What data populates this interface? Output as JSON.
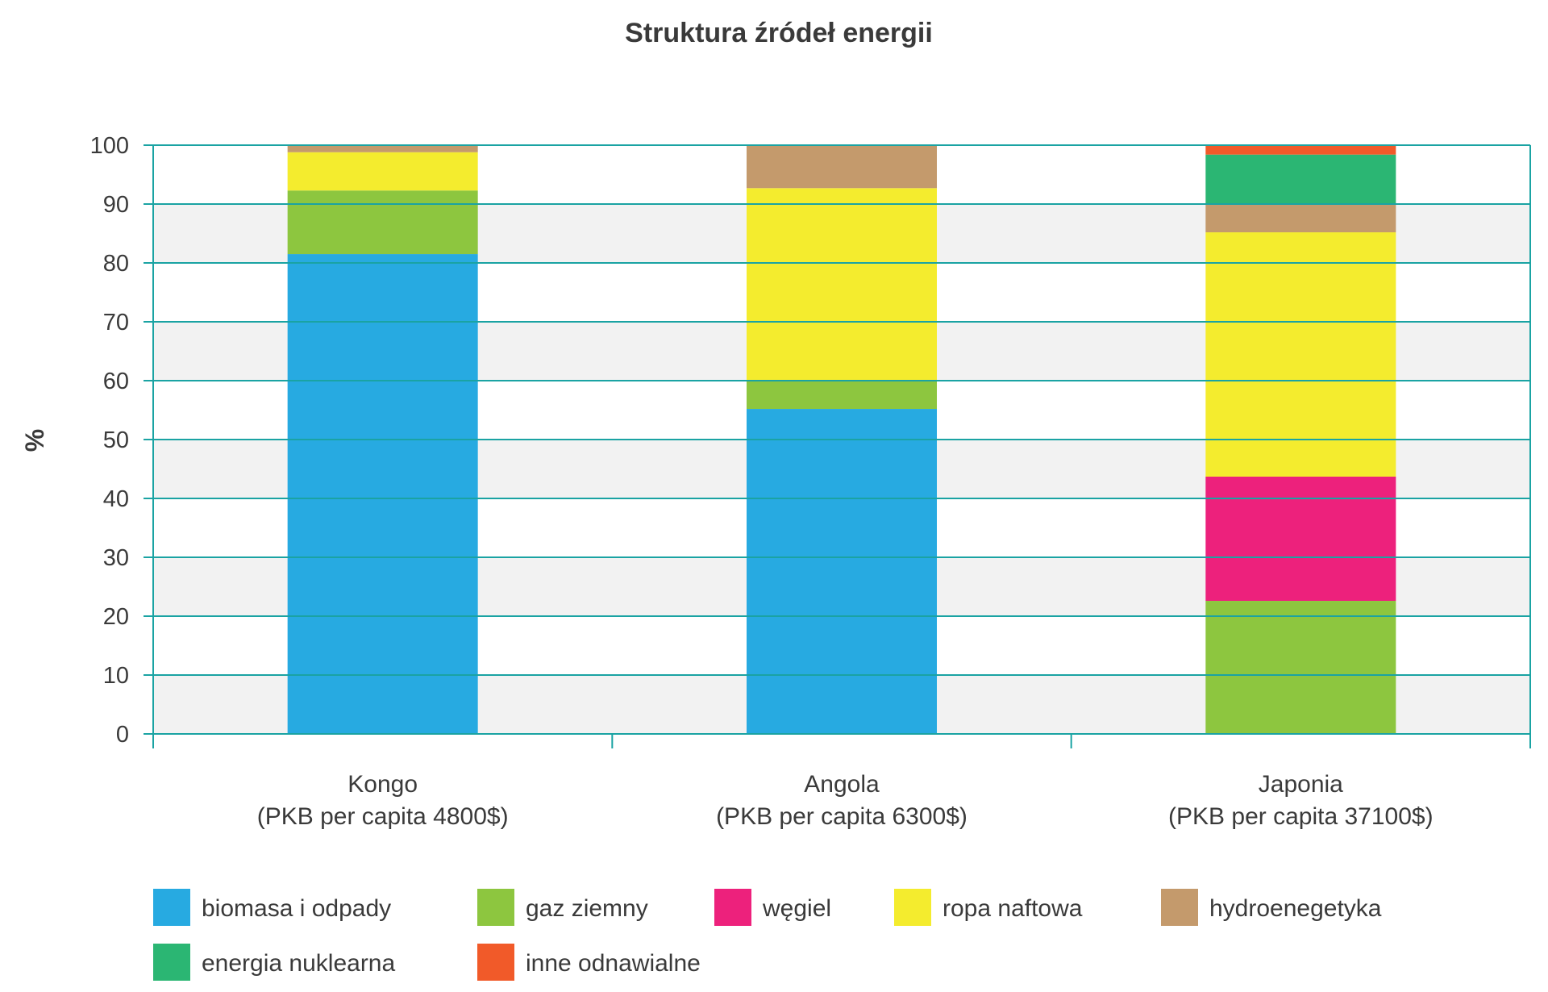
{
  "chart_data": {
    "type": "bar",
    "stacked": true,
    "title": "Struktura źródeł energii",
    "ylabel": "%",
    "xlabel": "",
    "ylim": [
      0,
      100
    ],
    "yticks": [
      0,
      10,
      20,
      30,
      40,
      50,
      60,
      70,
      80,
      90,
      100
    ],
    "grid": true,
    "legend_position": "bottom",
    "categories": [
      [
        "Kongo",
        "(PKB per capita 4800$)"
      ],
      [
        "Angola",
        "(PKB per capita 6300$)"
      ],
      [
        "Japonia",
        "(PKB per capita 37100$)"
      ]
    ],
    "series": [
      {
        "name": "biomasa i odpady",
        "color": "#27aae1",
        "values": [
          81.5,
          55.2,
          0
        ]
      },
      {
        "name": "gaz ziemny",
        "color": "#8dc63f",
        "values": [
          10.8,
          4.7,
          22.6
        ]
      },
      {
        "name": "węgiel",
        "color": "#ed217c",
        "values": [
          0,
          0,
          21.1
        ]
      },
      {
        "name": "ropa naftowa",
        "color": "#f4ec2e",
        "values": [
          6.5,
          32.8,
          41.5
        ]
      },
      {
        "name": "hydroenegetyka",
        "color": "#c49a6c",
        "values": [
          1.2,
          7.3,
          4.8
        ]
      },
      {
        "name": "energia nuklearna",
        "color": "#2bb673",
        "values": [
          0,
          0,
          8.4
        ]
      },
      {
        "name": "inne odnawialne",
        "color": "#f15a29",
        "values": [
          0,
          0,
          1.6
        ]
      }
    ],
    "colors": {
      "axis": "#1aa3a3",
      "band": "#f2f2f2",
      "text": "#3a3a3a"
    }
  }
}
